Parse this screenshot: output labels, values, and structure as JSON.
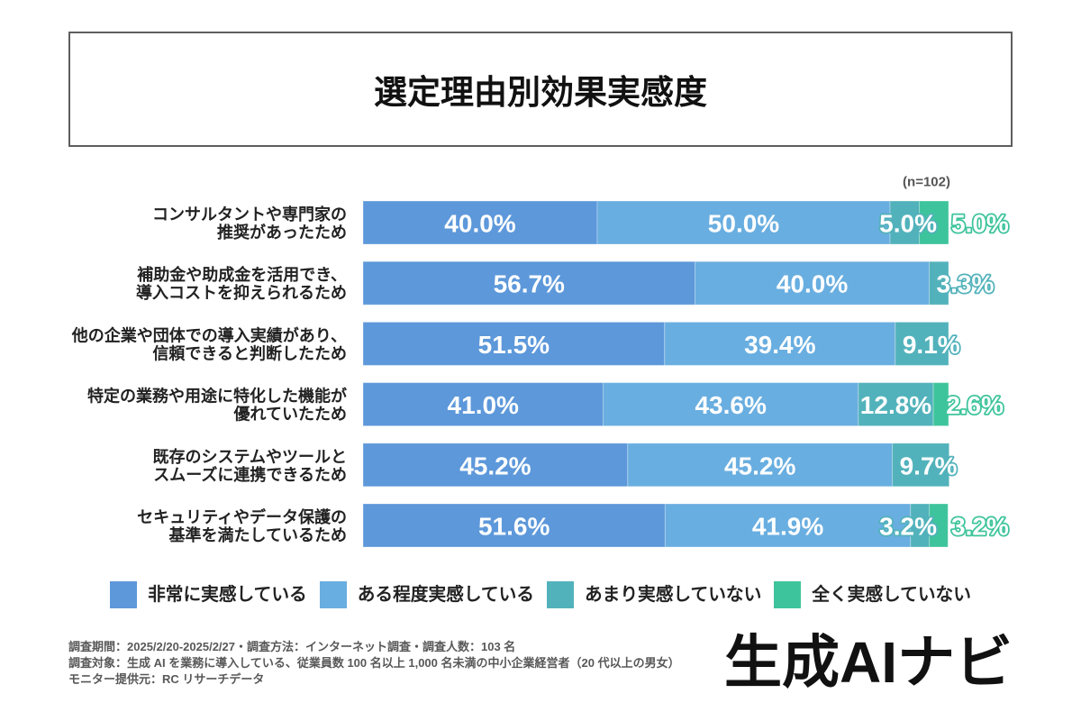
{
  "chart_data": {
    "type": "bar",
    "orientation": "horizontal",
    "stacked": true,
    "title": "選定理由別効果実感度",
    "sample_size_label": "(n=102)",
    "categories": [
      [
        "コンサルタントや専門家の",
        "推奨があったため"
      ],
      [
        "補助金や助成金を活用でき、",
        "導入コストを抑えられるため"
      ],
      [
        "他の企業や団体での導入実績があり、",
        "信頼できると判断したため"
      ],
      [
        "特定の業務や用途に特化した機能が",
        "優れていたため"
      ],
      [
        "既存のシステムやツールと",
        "スムーズに連携できるため"
      ],
      [
        "セキュリティやデータ保護の",
        "基準を満たしているため"
      ]
    ],
    "series": [
      {
        "name": "非常に実感している",
        "color": "#5d98da",
        "values": [
          40.0,
          56.7,
          51.5,
          41.0,
          45.2,
          51.6
        ],
        "labels": [
          "40.0%",
          "56.7%",
          "51.5%",
          "41.0%",
          "45.2%",
          "51.6%"
        ]
      },
      {
        "name": "ある程度実感している",
        "color": "#69aee0",
        "values": [
          50.0,
          40.0,
          39.4,
          43.6,
          45.2,
          41.9
        ],
        "labels": [
          "50.0%",
          "40.0%",
          "39.4%",
          "43.6%",
          "45.2%",
          "41.9%"
        ]
      },
      {
        "name": "あまり実感していない",
        "color": "#52b2bb",
        "values": [
          5.0,
          3.3,
          9.1,
          12.8,
          9.7,
          3.2
        ],
        "labels": [
          "5.0%",
          "3.3%",
          "9.1%",
          "12.8%",
          "9.7%",
          "3.2%"
        ]
      },
      {
        "name": "全く実感していない",
        "color": "#3ec49c",
        "values": [
          5.0,
          0,
          0,
          2.6,
          0,
          3.2
        ],
        "labels": [
          "5.0%",
          null,
          null,
          "2.6%",
          null,
          "3.2%"
        ]
      }
    ],
    "xlim": [
      0,
      100
    ],
    "grid": false,
    "legend_position": "bottom"
  },
  "footer": {
    "lines": [
      "調査期間：2025/2/20-2025/2/27・調査方法：インターネット調査・調査人数：103 名",
      "調査対象：生成 AI を業務に導入している、従業員数 100 名以上 1,000 名未満の中小企業経営者（20 代以上の男女）",
      "モニター提供元：RC リサーチデータ"
    ]
  },
  "brand": {
    "logo_text": "生成AIナビ"
  }
}
